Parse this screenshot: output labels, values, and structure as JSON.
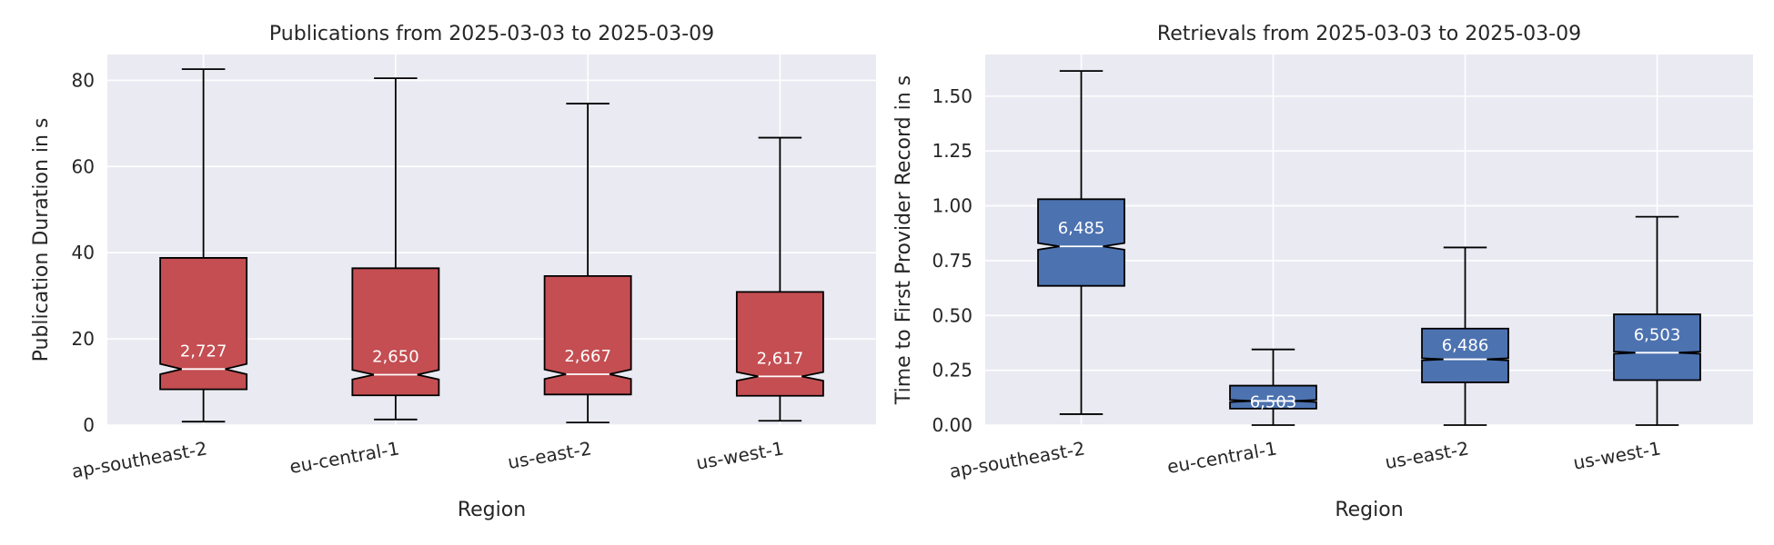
{
  "chart_data": [
    {
      "type": "box",
      "title": "Publications from 2025-03-03 to 2025-03-09",
      "xlabel": "Region",
      "ylabel": "Publication Duration in s",
      "ylim": [
        0,
        86
      ],
      "yticks": [
        0,
        20,
        40,
        60,
        80
      ],
      "categories": [
        "ap-southeast-2",
        "eu-central-1",
        "us-east-2",
        "us-west-1"
      ],
      "color": "#c44e52",
      "median_color": "#ffffff",
      "notched": true,
      "grid": true,
      "boxes": [
        {
          "category": "ap-southeast-2",
          "whislo": 0.8,
          "q1": 8.3,
          "med": 13.0,
          "q3": 38.8,
          "whishi": 82.6,
          "notch_lo": 11.8,
          "notch_hi": 14.2,
          "count": "2,727"
        },
        {
          "category": "eu-central-1",
          "whislo": 1.3,
          "q1": 6.9,
          "med": 11.7,
          "q3": 36.4,
          "whishi": 80.5,
          "notch_lo": 10.6,
          "notch_hi": 12.8,
          "count": "2,650"
        },
        {
          "category": "us-east-2",
          "whislo": 0.6,
          "q1": 7.1,
          "med": 11.8,
          "q3": 34.6,
          "whishi": 74.6,
          "notch_lo": 10.7,
          "notch_hi": 12.9,
          "count": "2,667"
        },
        {
          "category": "us-west-1",
          "whislo": 1.0,
          "q1": 6.8,
          "med": 11.3,
          "q3": 30.9,
          "whishi": 66.7,
          "notch_lo": 10.3,
          "notch_hi": 12.3,
          "count": "2,617"
        }
      ]
    },
    {
      "type": "box",
      "title": "Retrievals from 2025-03-03 to 2025-03-09",
      "xlabel": "Region",
      "ylabel": "Time to First Provider Record in s",
      "ylim": [
        0,
        1.69
      ],
      "yticks": [
        0.0,
        0.25,
        0.5,
        0.75,
        1.0,
        1.25,
        1.5
      ],
      "categories": [
        "ap-southeast-2",
        "eu-central-1",
        "us-east-2",
        "us-west-1"
      ],
      "color": "#4c72b0",
      "median_color": "#ffffff",
      "notched": true,
      "grid": true,
      "boxes": [
        {
          "category": "ap-southeast-2",
          "whislo": 0.05,
          "q1": 0.635,
          "med": 0.815,
          "q3": 1.03,
          "whishi": 1.615,
          "notch_lo": 0.8,
          "notch_hi": 0.83,
          "count": "6,485"
        },
        {
          "category": "eu-central-1",
          "whislo": 0.0,
          "q1": 0.075,
          "med": 0.11,
          "q3": 0.18,
          "whishi": 0.345,
          "notch_lo": 0.105,
          "notch_hi": 0.115,
          "count": "6,503"
        },
        {
          "category": "us-east-2",
          "whislo": 0.0,
          "q1": 0.195,
          "med": 0.3,
          "q3": 0.44,
          "whishi": 0.81,
          "notch_lo": 0.295,
          "notch_hi": 0.305,
          "count": "6,486"
        },
        {
          "category": "us-west-1",
          "whislo": 0.0,
          "q1": 0.205,
          "med": 0.33,
          "q3": 0.505,
          "whishi": 0.95,
          "notch_lo": 0.325,
          "notch_hi": 0.335,
          "count": "6,503"
        }
      ]
    }
  ]
}
